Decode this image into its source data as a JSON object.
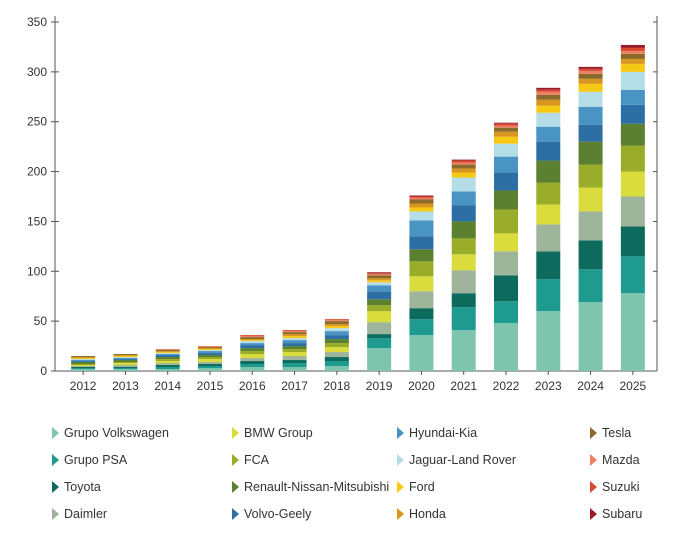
{
  "chart_data": {
    "type": "bar",
    "stacked": true,
    "categories": [
      "2012",
      "2013",
      "2014",
      "2015",
      "2016",
      "2017",
      "2018",
      "2019",
      "2020",
      "2021",
      "2022",
      "2023",
      "2024",
      "2025"
    ],
    "ylim": [
      0,
      350
    ],
    "yticks": [
      0,
      50,
      100,
      150,
      200,
      250,
      300,
      350
    ],
    "grid": false,
    "legend_position": "bottom",
    "series": [
      {
        "name": "Grupo Volkswagen",
        "color": "#7fc4ad",
        "values": [
          2,
          2,
          2,
          3,
          4,
          4,
          5,
          23,
          36,
          41,
          48,
          60,
          69,
          78
        ]
      },
      {
        "name": "Grupo PSA",
        "color": "#1e9a8e",
        "values": [
          1,
          1,
          2,
          2,
          3,
          4,
          5,
          10,
          16,
          23,
          22,
          32,
          33,
          37
        ]
      },
      {
        "name": "Toyota",
        "color": "#0d6b5e",
        "values": [
          1,
          1,
          2,
          2,
          3,
          3,
          4,
          4,
          11,
          14,
          26,
          28,
          29,
          30
        ]
      },
      {
        "name": "Daimler",
        "color": "#9eb59b",
        "values": [
          1,
          2,
          2,
          2,
          3,
          4,
          5,
          12,
          17,
          23,
          24,
          27,
          29,
          30
        ]
      },
      {
        "name": "BMW Group",
        "color": "#d9dc3c",
        "values": [
          1,
          2,
          2,
          3,
          4,
          4,
          5,
          11,
          15,
          16,
          18,
          20,
          24,
          25
        ]
      },
      {
        "name": "FCA",
        "color": "#9aad2a",
        "values": [
          1,
          1,
          2,
          2,
          3,
          3,
          4,
          6,
          15,
          16,
          24,
          22,
          23,
          26
        ]
      },
      {
        "name": "Renault-Nissan-Mitsubishi",
        "color": "#5a8030",
        "values": [
          2,
          2,
          2,
          2,
          3,
          3,
          4,
          6,
          12,
          17,
          19,
          22,
          23,
          22
        ]
      },
      {
        "name": "Volvo-Geely",
        "color": "#2d6fa5",
        "values": [
          1,
          1,
          2,
          2,
          3,
          3,
          4,
          8,
          13,
          16,
          18,
          19,
          17,
          19
        ]
      },
      {
        "name": "Hyundai-Kia",
        "color": "#4a94c4",
        "values": [
          1,
          1,
          1,
          2,
          2,
          3,
          4,
          6,
          16,
          14,
          16,
          15,
          18,
          15
        ]
      },
      {
        "name": "Jaguar-Land Rover",
        "color": "#b5dde8",
        "values": [
          1,
          1,
          1,
          1,
          2,
          2,
          3,
          3,
          9,
          14,
          13,
          14,
          15,
          18
        ]
      },
      {
        "name": "Ford",
        "color": "#f7c915",
        "values": [
          1,
          1,
          1,
          1,
          1,
          2,
          2,
          2,
          4,
          5,
          7,
          7,
          8,
          8
        ]
      },
      {
        "name": "Honda",
        "color": "#d9961e",
        "values": [
          1,
          1,
          1,
          1,
          1,
          2,
          2,
          2,
          4,
          4,
          5,
          6,
          5,
          5
        ]
      },
      {
        "name": "Tesla",
        "color": "#8a6a2a",
        "values": [
          1,
          1,
          1,
          1,
          2,
          2,
          3,
          3,
          4,
          4,
          4,
          5,
          5,
          5
        ]
      },
      {
        "name": "Mazda",
        "color": "#ed7f62",
        "values": [
          0,
          0,
          1,
          1,
          1,
          1,
          1,
          1,
          2,
          2,
          2,
          3,
          3,
          3
        ]
      },
      {
        "name": "Suzuki",
        "color": "#d9482f",
        "values": [
          0,
          0,
          0,
          0,
          1,
          1,
          1,
          1,
          1,
          2,
          2,
          2,
          2,
          3
        ]
      },
      {
        "name": "Subaru",
        "color": "#9a1c2a",
        "values": [
          0,
          0,
          0,
          0,
          0,
          0,
          0,
          1,
          1,
          1,
          1,
          2,
          2,
          3
        ]
      }
    ]
  }
}
